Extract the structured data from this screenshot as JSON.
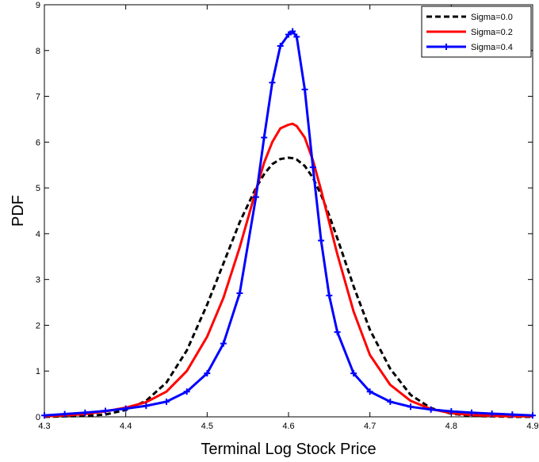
{
  "chart_data": {
    "type": "line",
    "xlabel": "Terminal Log Stock Price",
    "ylabel": "PDF",
    "xlim": [
      4.3,
      4.9
    ],
    "ylim": [
      0,
      9
    ],
    "xticks": [
      "4.3",
      "4.4",
      "4.5",
      "4.6",
      "4.7",
      "4.8",
      "4.9"
    ],
    "yticks": [
      "0",
      "1",
      "2",
      "3",
      "4",
      "5",
      "6",
      "7",
      "8",
      "9"
    ],
    "grid": false,
    "legend_position": "top-right",
    "x": [
      4.3,
      4.325,
      4.35,
      4.375,
      4.4,
      4.425,
      4.45,
      4.475,
      4.5,
      4.52,
      4.54,
      4.56,
      4.57,
      4.58,
      4.59,
      4.6,
      4.605,
      4.61,
      4.62,
      4.63,
      4.64,
      4.65,
      4.66,
      4.68,
      4.7,
      4.725,
      4.75,
      4.775,
      4.8,
      4.825,
      4.85,
      4.875,
      4.9
    ],
    "series": [
      {
        "name": "Sigma=0.0",
        "color": "#000000",
        "style": "dashed",
        "values": [
          0.0,
          0.01,
          0.02,
          0.05,
          0.15,
          0.35,
          0.75,
          1.45,
          2.45,
          3.35,
          4.25,
          5.0,
          5.3,
          5.52,
          5.63,
          5.66,
          5.65,
          5.62,
          5.48,
          5.22,
          4.85,
          4.4,
          3.9,
          2.85,
          1.9,
          1.05,
          0.48,
          0.19,
          0.07,
          0.02,
          0.01,
          0.0,
          0.0
        ]
      },
      {
        "name": "Sigma=0.2",
        "color": "#ff0000",
        "style": "solid",
        "values": [
          0.01,
          0.03,
          0.06,
          0.12,
          0.2,
          0.32,
          0.55,
          1.0,
          1.75,
          2.6,
          3.7,
          4.95,
          5.55,
          6.0,
          6.3,
          6.38,
          6.4,
          6.35,
          6.1,
          5.6,
          4.95,
          4.25,
          3.55,
          2.3,
          1.35,
          0.7,
          0.35,
          0.17,
          0.08,
          0.04,
          0.02,
          0.01,
          0.01
        ]
      },
      {
        "name": "Sigma=0.4",
        "color": "#0000ff",
        "style": "solid-plus-markers",
        "values": [
          0.03,
          0.06,
          0.09,
          0.13,
          0.18,
          0.24,
          0.33,
          0.55,
          0.95,
          1.6,
          2.7,
          4.8,
          6.1,
          7.3,
          8.1,
          8.35,
          8.42,
          8.3,
          7.15,
          5.45,
          3.85,
          2.65,
          1.85,
          0.95,
          0.55,
          0.33,
          0.22,
          0.16,
          0.12,
          0.09,
          0.07,
          0.05,
          0.03
        ]
      }
    ]
  }
}
